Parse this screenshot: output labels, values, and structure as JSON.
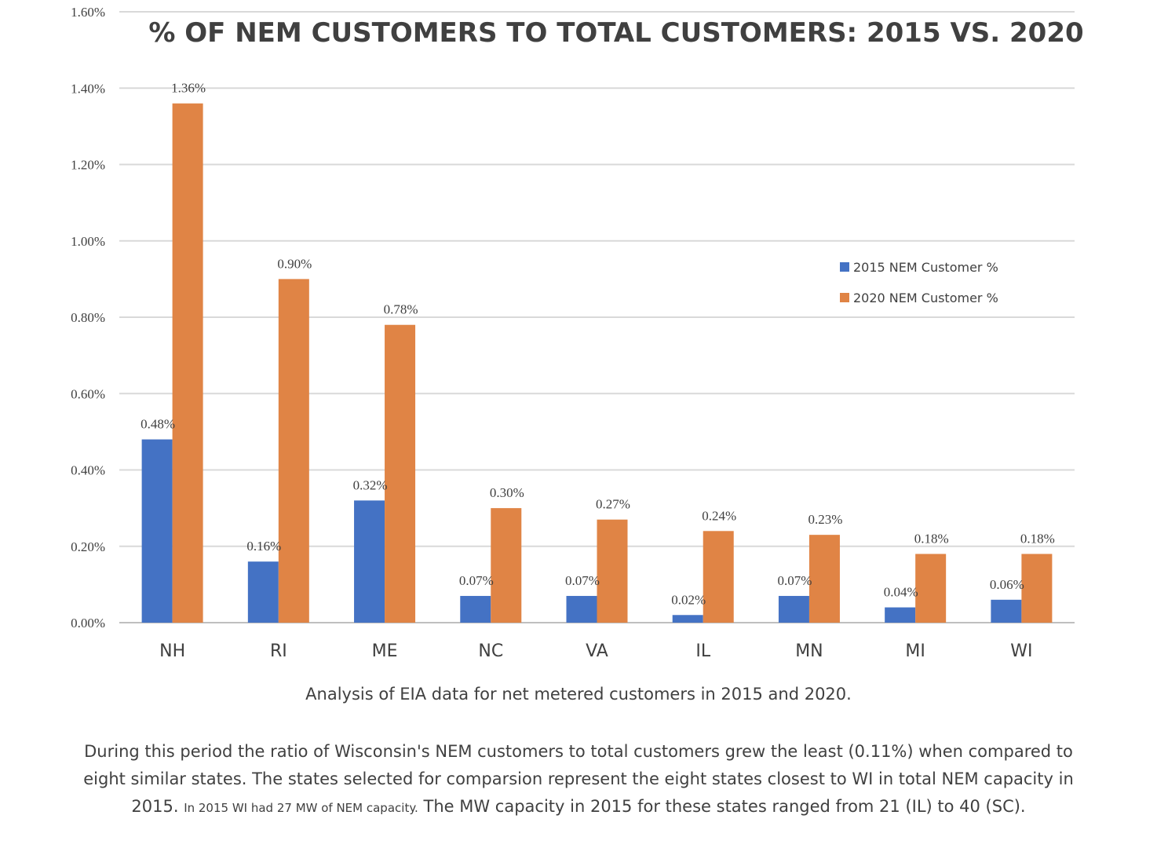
{
  "chart_data": {
    "type": "bar",
    "title": "% OF NEM CUSTOMERS TO TOTAL CUSTOMERS: 2015 VS. 2020",
    "categories": [
      "NH",
      "RI",
      "ME",
      "NC",
      "VA",
      "IL",
      "MN",
      "MI",
      "WI"
    ],
    "series": [
      {
        "name": "2015 NEM Customer %",
        "color": "#4472c4",
        "values": [
          0.48,
          0.16,
          0.32,
          0.07,
          0.07,
          0.02,
          0.07,
          0.04,
          0.06
        ],
        "labels": [
          "0.48%",
          "0.16%",
          "0.32%",
          "0.07%",
          "0.07%",
          "0.02%",
          "0.07%",
          "0.04%",
          "0.06%"
        ]
      },
      {
        "name": "2020 NEM Customer %",
        "color": "#e08445",
        "values": [
          1.36,
          0.9,
          0.78,
          0.3,
          0.27,
          0.24,
          0.23,
          0.18,
          0.18
        ],
        "labels": [
          "1.36%",
          "0.90%",
          "0.78%",
          "0.30%",
          "0.27%",
          "0.24%",
          "0.23%",
          "0.18%",
          "0.18%"
        ]
      }
    ],
    "ylim": [
      0,
      1.6
    ],
    "yticks": [
      "0.00%",
      "0.20%",
      "0.40%",
      "0.60%",
      "0.80%",
      "1.00%",
      "1.20%",
      "1.40%",
      "1.60%"
    ],
    "grid": true,
    "legend_position": "right"
  },
  "captions": {
    "line1": "Analysis of EIA data for net metered customers in 2015 and 2020.",
    "para_a": "During this period the ratio of Wisconsin's NEM customers to total customers grew the least (0.11%) when compared to eight similar states. The states selected for comparsion represent the eight states closest to WI in total NEM capacity in 2015.",
    "para_small": "In 2015 WI had 27 MW of NEM capacity.",
    "para_b": "The MW capacity in 2015 for these states ranged from 21 (IL) to 40 (SC)."
  }
}
